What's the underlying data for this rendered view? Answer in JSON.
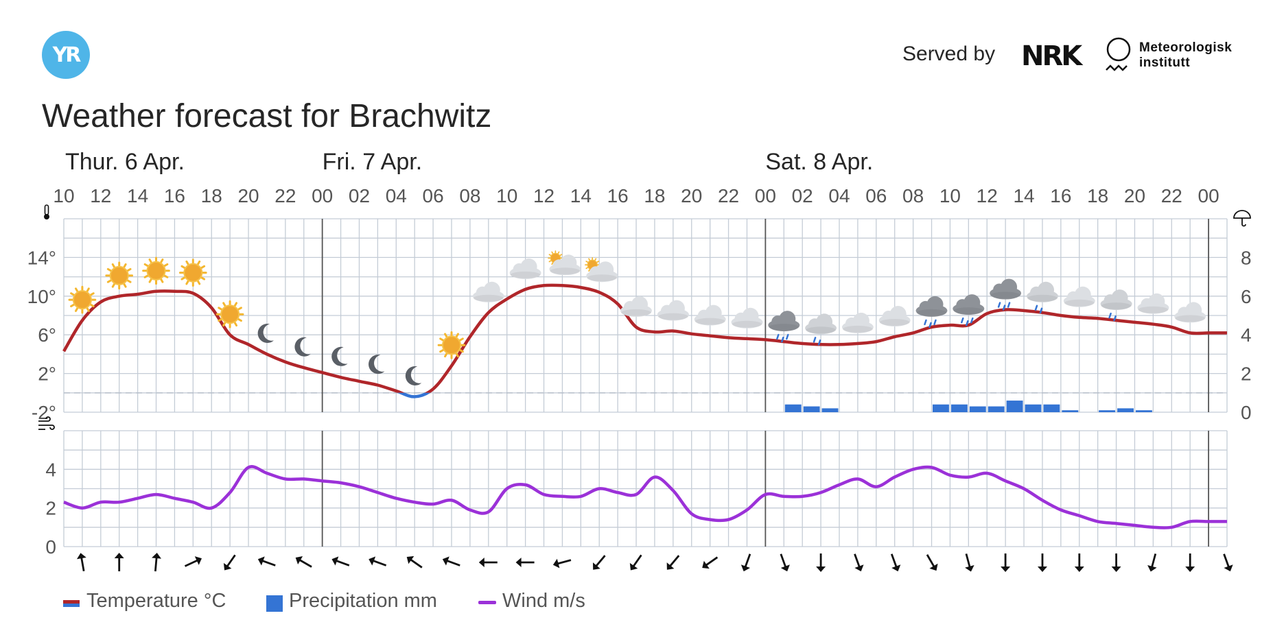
{
  "header": {
    "logo_text": "YR",
    "served_by": "Served by",
    "nrk_logo_text": "NRK",
    "met_line1": "Meteorologisk",
    "met_line2": "institutt",
    "title": "Weather forecast for Brachwitz"
  },
  "legend": {
    "temperature": "Temperature °C",
    "precipitation": "Precipitation mm",
    "wind": "Wind m/s"
  },
  "colors": {
    "temperature_line": "#b0262a",
    "temperature_below_zero": "#3474d4",
    "precipitation": "#3474d4",
    "wind_line": "#9b31d8",
    "grid": "#c4ccd6",
    "day_divider": "#555555"
  },
  "chart_data": {
    "type": "line",
    "days": [
      {
        "label": "Thur. 6 Apr.",
        "start_hour": 10
      },
      {
        "label": "Fri. 7 Apr.",
        "start_hour": 24
      },
      {
        "label": "Sat. 8 Apr.",
        "start_hour": 48
      }
    ],
    "x_hour_start": 10,
    "x_hour_end": 73,
    "time_tick_labels": [
      "10",
      "12",
      "14",
      "16",
      "18",
      "20",
      "22",
      "00",
      "02",
      "04",
      "06",
      "08",
      "10",
      "12",
      "14",
      "16",
      "18",
      "20",
      "22",
      "00",
      "02",
      "04",
      "06",
      "08",
      "10",
      "12",
      "14",
      "16",
      "18",
      "20",
      "22",
      "00"
    ],
    "temperature": {
      "axis_icon": "thermometer-icon",
      "unit": "°C",
      "ylim": [
        -2,
        18
      ],
      "tick_labels": [
        "14°",
        "10°",
        "6°",
        "2°",
        "-2°"
      ],
      "tick_values": [
        14,
        10,
        6,
        2,
        -2
      ],
      "x": [
        10,
        11,
        12,
        13,
        14,
        15,
        16,
        17,
        18,
        19,
        20,
        21,
        22,
        23,
        24,
        25,
        26,
        27,
        28,
        29,
        30,
        31,
        32,
        33,
        34,
        35,
        36,
        37,
        38,
        39,
        40,
        41,
        42,
        43,
        44,
        45,
        46,
        47,
        48,
        49,
        50,
        51,
        52,
        53,
        54,
        55,
        56,
        57,
        58,
        59,
        60,
        61,
        62,
        63,
        64,
        65,
        66,
        67,
        68,
        69,
        70,
        71,
        72,
        73
      ],
      "values": [
        4.3,
        7.5,
        9.4,
        10.0,
        10.2,
        10.5,
        10.5,
        10.3,
        8.8,
        6.0,
        5.0,
        4.0,
        3.2,
        2.6,
        2.1,
        1.6,
        1.2,
        0.8,
        0.2,
        -0.4,
        0.4,
        2.8,
        5.8,
        8.3,
        9.7,
        10.7,
        11.1,
        11.1,
        10.9,
        10.4,
        9.2,
        6.8,
        6.3,
        6.4,
        6.1,
        5.9,
        5.7,
        5.6,
        5.5,
        5.3,
        5.1,
        5.0,
        5.0,
        5.1,
        5.3,
        5.8,
        6.2,
        6.8,
        7.0,
        7.0,
        8.2,
        8.6,
        8.5,
        8.3,
        8.0,
        7.8,
        7.7,
        7.5,
        7.3,
        7.1,
        6.8,
        6.2,
        6.2,
        6.2
      ]
    },
    "precipitation": {
      "axis_icon": "umbrella-icon",
      "unit": "mm",
      "ylim": [
        0,
        10
      ],
      "tick_labels": [
        "8",
        "6",
        "4",
        "2",
        "0"
      ],
      "tick_values": [
        8,
        6,
        4,
        2,
        0
      ],
      "hours": [
        49,
        50,
        51,
        57,
        58,
        59,
        60,
        61,
        62,
        63,
        64,
        66,
        67,
        68
      ],
      "values": [
        0.4,
        0.3,
        0.2,
        0.4,
        0.4,
        0.3,
        0.3,
        0.6,
        0.4,
        0.4,
        0.1,
        0.1,
        0.2,
        0.1
      ]
    },
    "wind": {
      "axis_icon": "wind-icon",
      "unit": "m/s",
      "ylim": [
        0,
        6
      ],
      "tick_labels": [
        "4",
        "2",
        "0"
      ],
      "tick_values": [
        4,
        2,
        0
      ],
      "x": [
        10,
        11,
        12,
        13,
        14,
        15,
        16,
        17,
        18,
        19,
        20,
        21,
        22,
        23,
        24,
        25,
        26,
        27,
        28,
        29,
        30,
        31,
        32,
        33,
        34,
        35,
        36,
        37,
        38,
        39,
        40,
        41,
        42,
        43,
        44,
        45,
        46,
        47,
        48,
        49,
        50,
        51,
        52,
        53,
        54,
        55,
        56,
        57,
        58,
        59,
        60,
        61,
        62,
        63,
        64,
        65,
        66,
        67,
        68,
        69,
        70,
        71,
        72,
        73
      ],
      "values": [
        2.3,
        2.0,
        2.3,
        2.3,
        2.5,
        2.7,
        2.5,
        2.3,
        2.0,
        2.8,
        4.1,
        3.8,
        3.5,
        3.5,
        3.4,
        3.3,
        3.1,
        2.8,
        2.5,
        2.3,
        2.2,
        2.4,
        1.9,
        1.8,
        3.0,
        3.2,
        2.7,
        2.6,
        2.6,
        3.0,
        2.8,
        2.7,
        3.6,
        2.9,
        1.7,
        1.4,
        1.4,
        1.9,
        2.7,
        2.6,
        2.6,
        2.8,
        3.2,
        3.5,
        3.1,
        3.6,
        4.0,
        4.1,
        3.7,
        3.6,
        3.8,
        3.4,
        3.0,
        2.4,
        1.9,
        1.6,
        1.3,
        1.2,
        1.1,
        1.0,
        1.0,
        1.3,
        1.3,
        1.3
      ],
      "direction_hours": [
        11,
        13,
        15,
        17,
        19,
        21,
        23,
        25,
        27,
        29,
        31,
        33,
        35,
        37,
        39,
        41,
        43,
        45,
        47,
        49,
        51,
        53,
        55,
        57,
        59,
        61,
        63,
        65,
        67,
        69,
        71,
        73
      ],
      "direction_arrow_degrees": [
        350,
        0,
        5,
        65,
        215,
        290,
        300,
        290,
        290,
        305,
        290,
        270,
        270,
        255,
        220,
        215,
        220,
        235,
        200,
        160,
        180,
        160,
        160,
        150,
        165,
        180,
        180,
        180,
        180,
        195,
        180,
        160
      ]
    },
    "weather_symbols": [
      {
        "hour": 11,
        "symbol": "sun-icon"
      },
      {
        "hour": 13,
        "symbol": "sun-icon"
      },
      {
        "hour": 15,
        "symbol": "sun-icon"
      },
      {
        "hour": 17,
        "symbol": "sun-icon"
      },
      {
        "hour": 19,
        "symbol": "sun-icon"
      },
      {
        "hour": 21,
        "symbol": "moon-icon"
      },
      {
        "hour": 23,
        "symbol": "moon-icon"
      },
      {
        "hour": 25,
        "symbol": "moon-icon"
      },
      {
        "hour": 27,
        "symbol": "moon-icon"
      },
      {
        "hour": 29,
        "symbol": "moon-icon"
      },
      {
        "hour": 31,
        "symbol": "sun-icon"
      },
      {
        "hour": 33,
        "symbol": "cloud-icon"
      },
      {
        "hour": 35,
        "symbol": "cloud-icon"
      },
      {
        "hour": 37,
        "symbol": "partly-cloudy-icon"
      },
      {
        "hour": 39,
        "symbol": "partly-cloudy-icon"
      },
      {
        "hour": 41,
        "symbol": "cloud-icon"
      },
      {
        "hour": 43,
        "symbol": "cloud-icon"
      },
      {
        "hour": 45,
        "symbol": "cloud-icon"
      },
      {
        "hour": 47,
        "symbol": "cloud-icon"
      },
      {
        "hour": 49,
        "symbol": "rain-cloud-icon"
      },
      {
        "hour": 51,
        "symbol": "light-rain-cloud-icon"
      },
      {
        "hour": 53,
        "symbol": "cloud-icon"
      },
      {
        "hour": 55,
        "symbol": "cloud-icon"
      },
      {
        "hour": 57,
        "symbol": "rain-cloud-icon"
      },
      {
        "hour": 59,
        "symbol": "rain-cloud-icon"
      },
      {
        "hour": 61,
        "symbol": "rain-cloud-icon"
      },
      {
        "hour": 63,
        "symbol": "light-rain-cloud-icon"
      },
      {
        "hour": 65,
        "symbol": "cloud-icon"
      },
      {
        "hour": 67,
        "symbol": "light-rain-cloud-icon"
      },
      {
        "hour": 69,
        "symbol": "cloud-icon"
      },
      {
        "hour": 71,
        "symbol": "cloud-icon"
      }
    ]
  }
}
